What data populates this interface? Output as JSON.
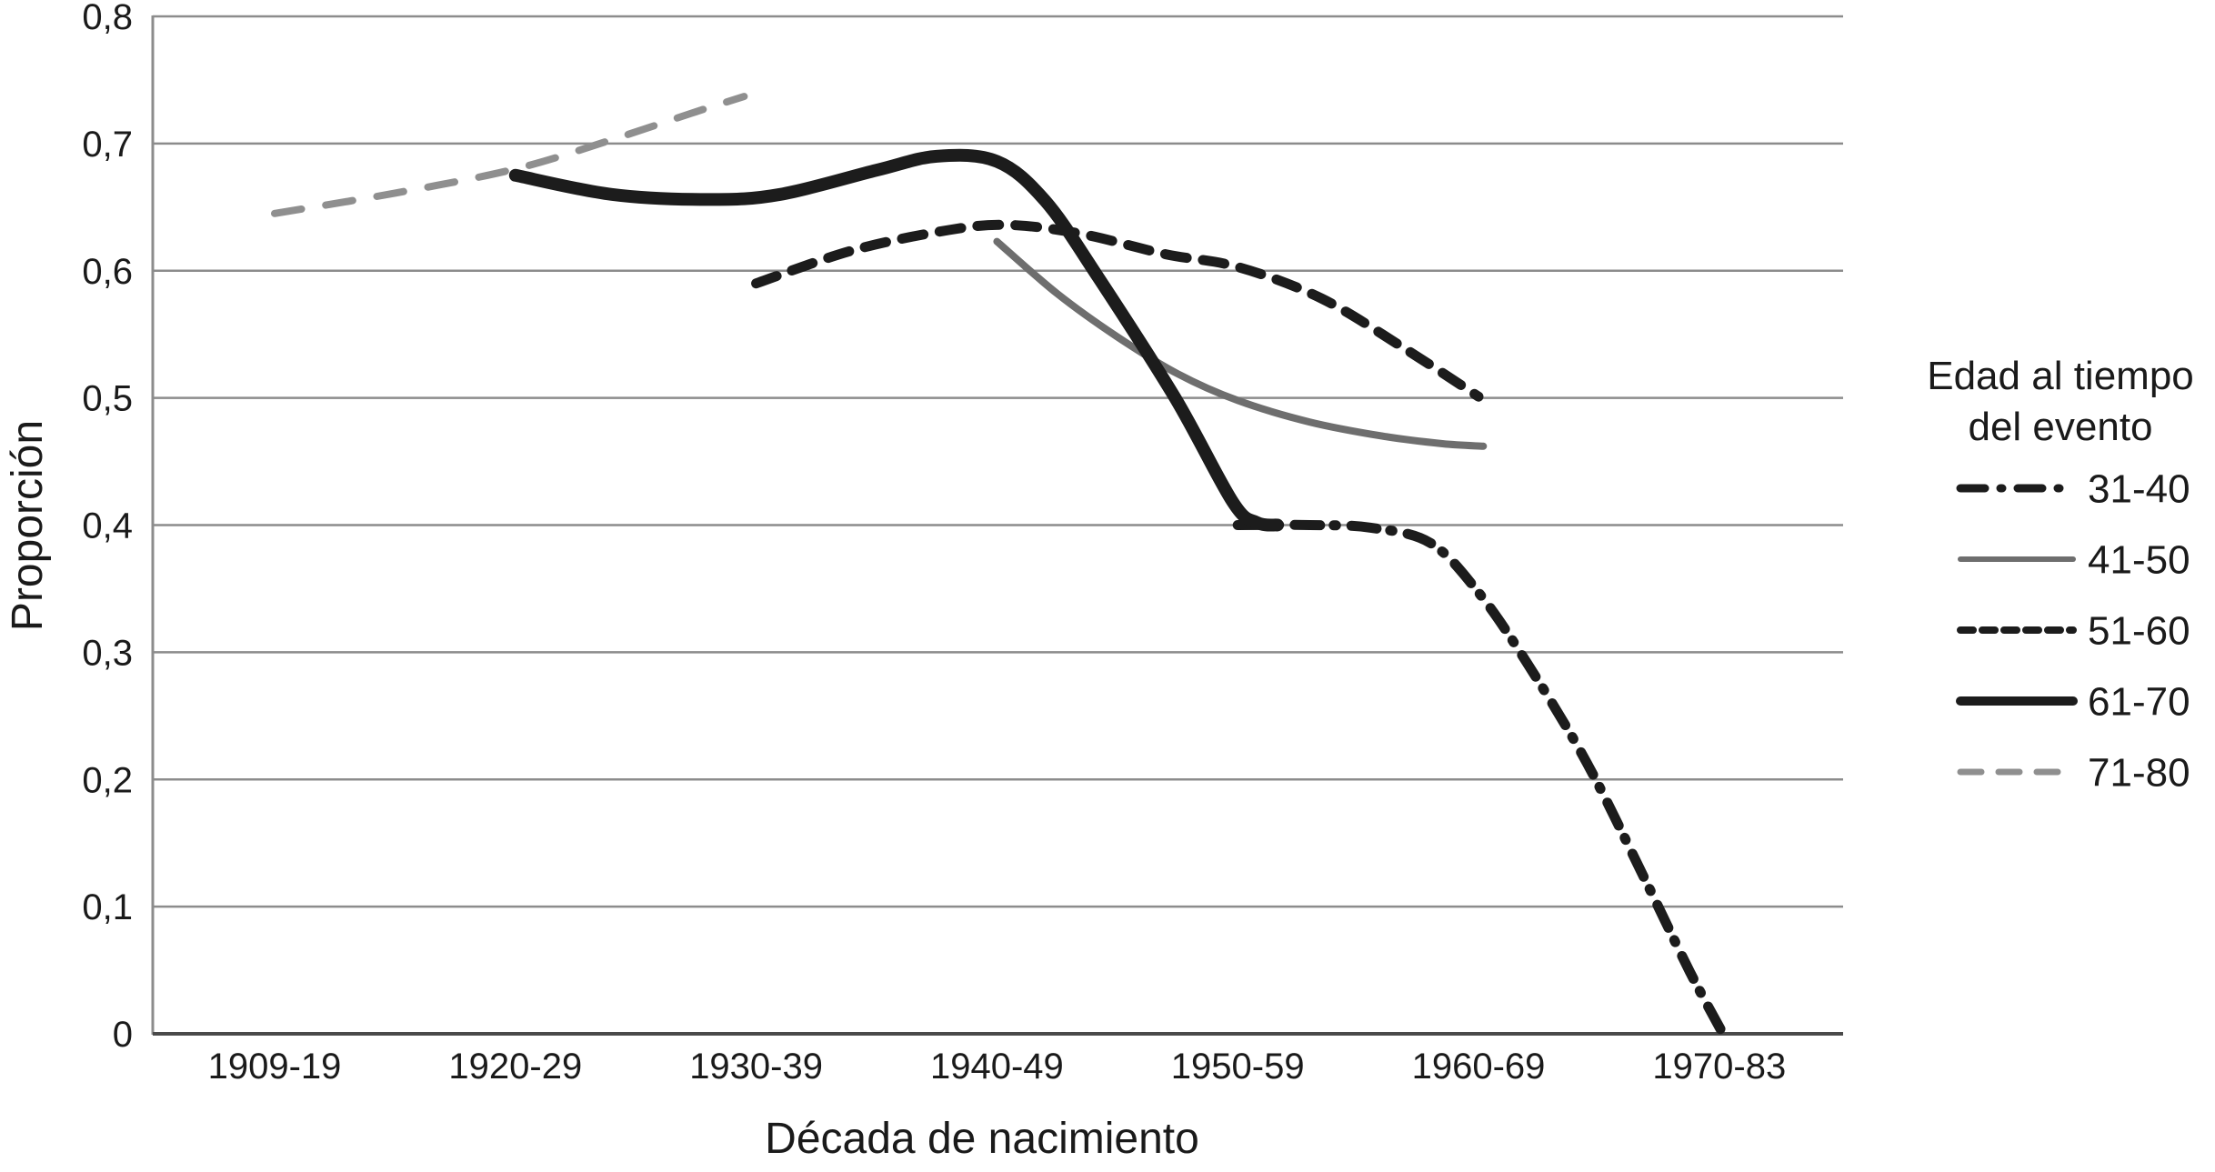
{
  "figure": {
    "background": "#ffffff",
    "text_color": "#1a1a1a",
    "gridline_color": "#8c8c8c",
    "axis_line_color": "#4a4a4a"
  },
  "chart_data": {
    "type": "line",
    "title": "",
    "categories": [
      "1909-19",
      "1920-29",
      "1930-39",
      "1940-49",
      "1950-59",
      "1960-69",
      "1970-83"
    ],
    "xlabel": "Década de nacimiento",
    "ylabel": "Proporción",
    "ylim": [
      0,
      0.8
    ],
    "ytick_labels": [
      "0",
      "0,1",
      "0,2",
      "0,3",
      "0,4",
      "0,5",
      "0,6",
      "0,7",
      "0,8"
    ],
    "grid": "horizontal gridlines every 0.1",
    "legend_position": "right",
    "legend_title": "Edad al tiempo del evento",
    "series": [
      {
        "name": "31-40",
        "style": "dash-dot",
        "color": "#1c1c1c",
        "width": 11,
        "values": [
          null,
          null,
          null,
          null,
          0.4,
          0.35,
          0.0
        ],
        "path_samples": [
          [
            4.0,
            0.4
          ],
          [
            4.3,
            0.4
          ],
          [
            4.55,
            0.398
          ],
          [
            4.8,
            0.386
          ],
          [
            5.0,
            0.347
          ],
          [
            5.2,
            0.292
          ],
          [
            5.45,
            0.213
          ],
          [
            5.7,
            0.118
          ],
          [
            5.88,
            0.048
          ],
          [
            6.01,
            0.002
          ]
        ]
      },
      {
        "name": "41-50",
        "style": "solid",
        "color": "#6e6e6e",
        "width": 8,
        "values": [
          null,
          null,
          null,
          0.62,
          0.5,
          0.46,
          null
        ],
        "path_samples": [
          [
            3.0,
            0.623
          ],
          [
            3.25,
            0.582
          ],
          [
            3.5,
            0.548
          ],
          [
            3.75,
            0.519
          ],
          [
            4.0,
            0.498
          ],
          [
            4.3,
            0.481
          ],
          [
            4.6,
            0.47
          ],
          [
            4.85,
            0.464
          ],
          [
            5.02,
            0.462
          ]
        ]
      },
      {
        "name": "51-60",
        "style": "dashed",
        "color": "#1c1c1c",
        "width": 11,
        "values": [
          null,
          null,
          0.59,
          0.635,
          0.605,
          0.5,
          null
        ],
        "path_samples": [
          [
            2.0,
            0.59
          ],
          [
            2.4,
            0.616
          ],
          [
            2.8,
            0.632
          ],
          [
            3.05,
            0.636
          ],
          [
            3.35,
            0.629
          ],
          [
            3.7,
            0.613
          ],
          [
            4.0,
            0.603
          ],
          [
            4.35,
            0.578
          ],
          [
            4.7,
            0.538
          ],
          [
            5.0,
            0.501
          ]
        ]
      },
      {
        "name": "61-70",
        "style": "solid",
        "color": "#1c1c1c",
        "width": 14,
        "values": [
          null,
          0.675,
          0.655,
          0.685,
          0.4,
          null,
          null
        ],
        "path_samples": [
          [
            1.0,
            0.675
          ],
          [
            1.4,
            0.66
          ],
          [
            1.8,
            0.656
          ],
          [
            2.1,
            0.66
          ],
          [
            2.5,
            0.679
          ],
          [
            2.75,
            0.69
          ],
          [
            3.0,
            0.686
          ],
          [
            3.2,
            0.655
          ],
          [
            3.42,
            0.595
          ],
          [
            3.74,
            0.5
          ],
          [
            3.98,
            0.418
          ],
          [
            4.08,
            0.402
          ],
          [
            4.165,
            0.4
          ]
        ]
      },
      {
        "name": "71-80",
        "style": "long-dash",
        "color": "#8f8f8f",
        "width": 8,
        "values": [
          0.645,
          0.68,
          0.74,
          null,
          null,
          null,
          null
        ],
        "path_samples": [
          [
            0.0,
            0.645
          ],
          [
            0.5,
            0.661
          ],
          [
            1.0,
            0.68
          ],
          [
            1.4,
            0.703
          ],
          [
            1.75,
            0.725
          ],
          [
            1.95,
            0.737
          ]
        ]
      }
    ]
  },
  "legend": {
    "title_line1": "Edad al tiempo",
    "title_line2": "del evento",
    "items": [
      {
        "label": "31-40"
      },
      {
        "label": "41-50"
      },
      {
        "label": "51-60"
      },
      {
        "label": "61-70"
      },
      {
        "label": "71-80"
      }
    ]
  }
}
